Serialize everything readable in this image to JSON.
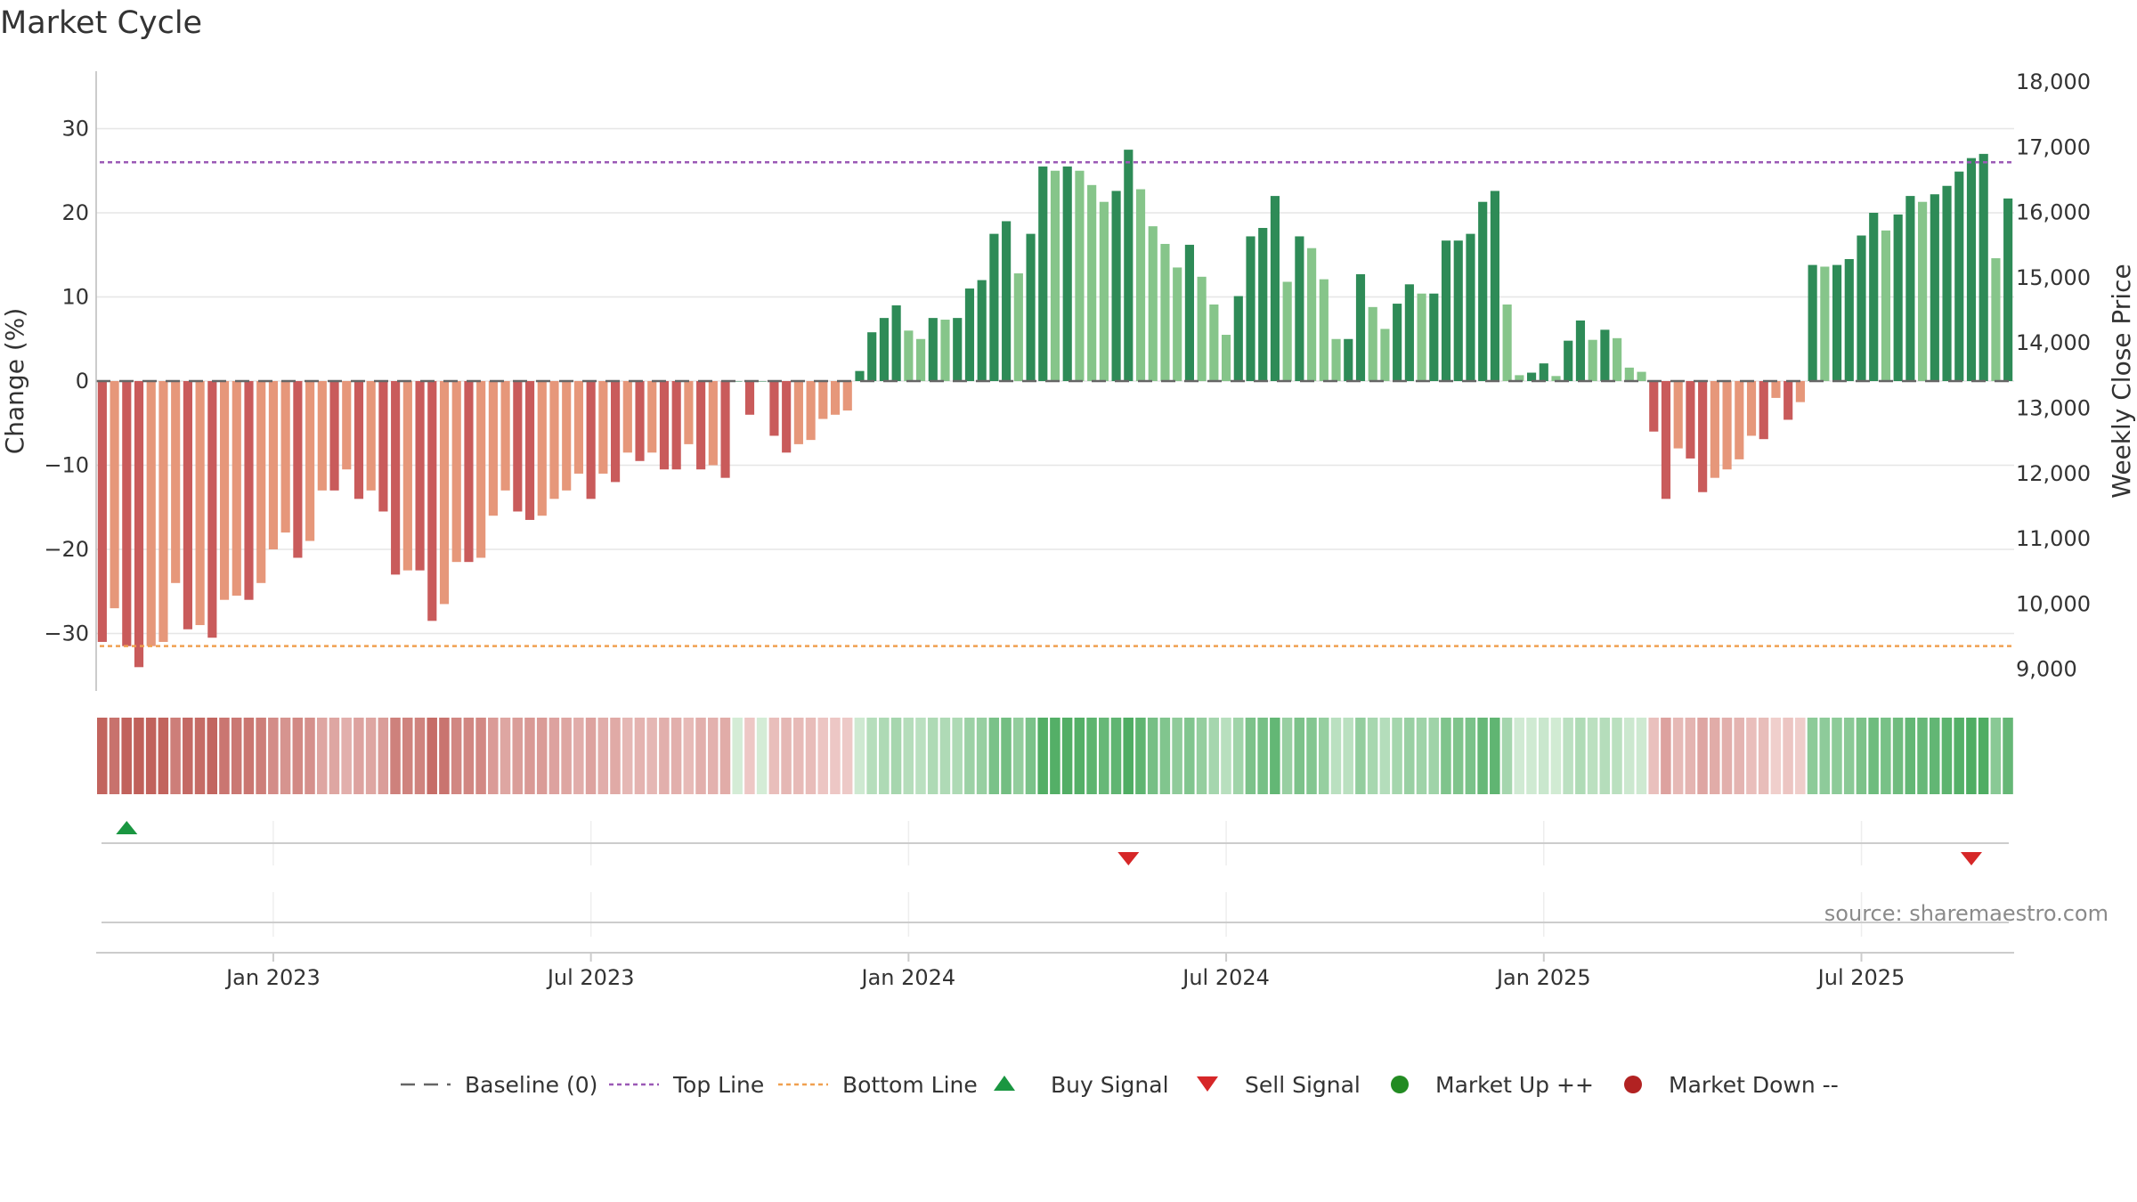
{
  "title": "Market Cycle",
  "source": "source: sharemaestro.com",
  "colors": {
    "down_dark": "#c95b5b",
    "down_light": "#e6977a",
    "up_dark": "#2e8b57",
    "up_light": "#86c58a",
    "top_line": "#9b59b6",
    "bottom_line": "#f0a050",
    "buy": "#1a9641",
    "sell": "#d62728",
    "market_up": "#228b22",
    "market_down": "#b22222",
    "baseline": "#666666"
  },
  "chart_data": {
    "type": "bar",
    "y_left_label": "Change (%)",
    "y_right_label": "Weekly Close Price",
    "y_left_ticks": [
      "30",
      "20",
      "10",
      "0",
      "−10",
      "−20",
      "−30"
    ],
    "y_right_ticks": [
      "18,000",
      "17,000",
      "16,000",
      "15,000",
      "14,000",
      "13,000",
      "12,000",
      "11,000",
      "10,000",
      "9,000"
    ],
    "ylim": [
      -37,
      37
    ],
    "top_line": 26,
    "bottom_line": -31.5,
    "x_ticks": [
      "Jan 2023",
      "Jul 2023",
      "Jan 2024",
      "Jul 2024",
      "Jan 2025",
      "Jul 2025"
    ],
    "x_tick_week_index": [
      14,
      40,
      66,
      92,
      118,
      144
    ],
    "values": [
      -31,
      -27,
      -31.5,
      -34,
      -31.5,
      -31,
      -24,
      -29.5,
      -29,
      -30.5,
      -26,
      -25.5,
      -26,
      -24,
      -20,
      -18,
      -21,
      -19,
      -13,
      -13,
      -10.5,
      -14,
      -13,
      -15.5,
      -23,
      -22.5,
      -22.5,
      -28.5,
      -26.5,
      -21.5,
      -21.5,
      -21,
      -16,
      -13,
      -15.5,
      -16.5,
      -16,
      -14,
      -13,
      -11,
      -14,
      -11,
      -12,
      -8.5,
      -9.5,
      -8.5,
      -10.5,
      -10.5,
      -7.5,
      -10.5,
      -10,
      -11.5,
      0,
      -4,
      0,
      -6.5,
      -8.5,
      -7.5,
      -7,
      -4.5,
      -4,
      -3.5,
      1.2,
      5.8,
      7.5,
      9,
      6,
      5,
      7.5,
      7.3,
      7.5,
      11,
      12,
      17.5,
      19,
      12.8,
      17.5,
      25.5,
      25,
      25.5,
      25,
      23.3,
      21.3,
      22.6,
      27.5,
      22.8,
      18.4,
      16.3,
      13.5,
      16.2,
      12.4,
      9.1,
      5.5,
      10.1,
      17.2,
      18.2,
      22,
      11.8,
      17.2,
      15.8,
      12.1,
      5,
      5,
      12.7,
      8.8,
      6.2,
      9.2,
      11.5,
      10.4,
      10.4,
      16.7,
      16.7,
      17.5,
      21.3,
      22.6,
      9.1,
      0.7,
      1,
      2.1,
      0.6,
      4.8,
      7.2,
      4.9,
      6.1,
      5.1,
      1.6,
      1.1,
      -6,
      -14,
      -8,
      -9.2,
      -13.2,
      -11.5,
      -10.5,
      -9.3,
      -6.5,
      -6.9,
      -2,
      -4.6,
      -2.5,
      13.8,
      13.6,
      13.8,
      14.5,
      17.3,
      20,
      17.9,
      19.8,
      22,
      21.3,
      22.2,
      23.2,
      24.9,
      26.5,
      27,
      14.6,
      21.7
    ],
    "buy_signal_week_index": [
      2
    ],
    "sell_signal_week_index": [
      84,
      153
    ],
    "legend": [
      "Baseline (0)",
      "Top Line",
      "Bottom Line",
      "Buy Signal",
      "Sell Signal",
      "Market Up ++",
      "Market Down --"
    ]
  }
}
